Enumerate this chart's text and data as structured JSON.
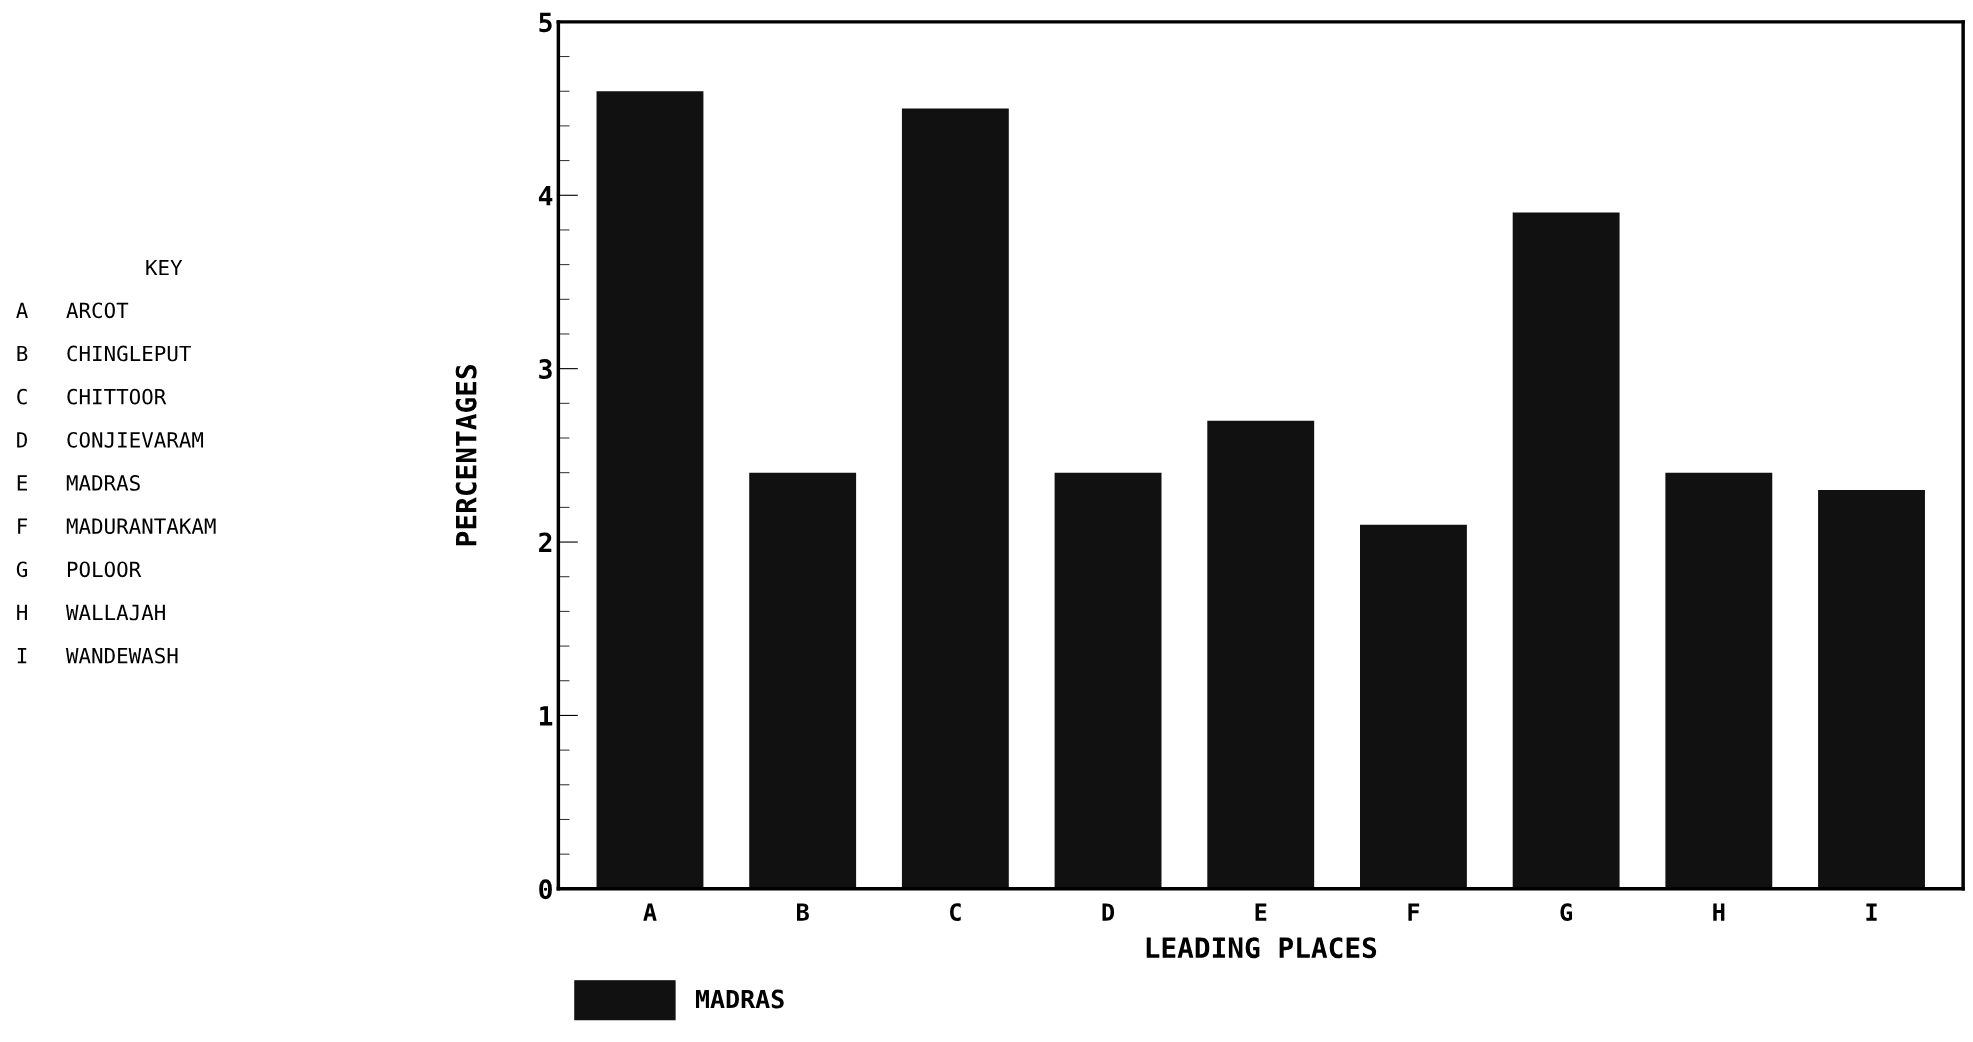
{
  "chart_data": {
    "type": "bar",
    "xlabel": "LEADING PLACES",
    "ylabel": "PERCENTAGES",
    "categories": [
      "A",
      "B",
      "C",
      "D",
      "E",
      "F",
      "G",
      "H",
      "I"
    ],
    "series": [
      {
        "name": "MADRAS",
        "color": "#111111",
        "values": [
          4.6,
          2.4,
          4.5,
          2.4,
          2.7,
          2.1,
          3.9,
          2.4,
          2.3
        ]
      }
    ],
    "ylim": [
      0,
      5
    ],
    "yticks": [
      0,
      1,
      2,
      3,
      4,
      5
    ],
    "grid": false,
    "legend": "bottom left",
    "annotations": [
      "KEY",
      "A   ARCOT",
      "B   CHINGLEPUT",
      "C   CHITTOOR",
      "D   CONJIEVARAM",
      "E   MADRAS",
      "F   MADURANTAKAM",
      "G   POLOOR",
      "H   WALLAJAH",
      "I   WANDEWASH"
    ]
  }
}
